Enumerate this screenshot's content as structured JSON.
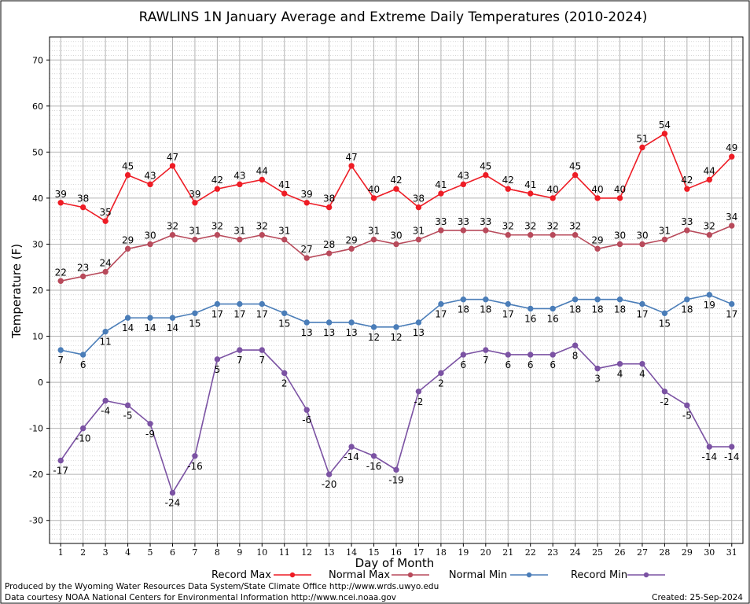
{
  "chart_data": {
    "type": "line",
    "title": "RAWLINS 1N January Average and Extreme Daily Temperatures (2010-2024)",
    "xlabel": "Day of Month",
    "ylabel": "Temperature (F)",
    "x": [
      1,
      2,
      3,
      4,
      5,
      6,
      7,
      8,
      9,
      10,
      11,
      12,
      13,
      14,
      15,
      16,
      17,
      18,
      19,
      20,
      21,
      22,
      23,
      24,
      25,
      26,
      27,
      28,
      29,
      30,
      31
    ],
    "xlim": [
      0.5,
      31.5
    ],
    "ylim": [
      -35,
      75
    ],
    "yticks": [
      -30,
      -20,
      -10,
      0,
      10,
      20,
      30,
      40,
      50,
      60,
      70
    ],
    "grid": true,
    "legend_position": "bottom",
    "series": [
      {
        "name": "Record Max",
        "color": "#ee1c25",
        "label_position": "above",
        "values": [
          39,
          38,
          35,
          45,
          43,
          47,
          39,
          42,
          43,
          44,
          41,
          39,
          38,
          47,
          40,
          42,
          38,
          41,
          43,
          45,
          42,
          41,
          40,
          45,
          40,
          40,
          51,
          54,
          42,
          44,
          49
        ]
      },
      {
        "name": "Normal Max",
        "color": "#b84a5b",
        "label_position": "above",
        "values": [
          22,
          23,
          24,
          29,
          30,
          32,
          31,
          32,
          31,
          32,
          31,
          27,
          28,
          29,
          31,
          30,
          31,
          33,
          33,
          33,
          32,
          32,
          32,
          32,
          29,
          30,
          30,
          31,
          33,
          32,
          34
        ]
      },
      {
        "name": "Normal Min",
        "color": "#4a7db8",
        "label_position": "below",
        "values": [
          7,
          6,
          11,
          14,
          14,
          14,
          15,
          17,
          17,
          17,
          15,
          13,
          13,
          13,
          12,
          12,
          13,
          17,
          18,
          18,
          17,
          16,
          16,
          18,
          18,
          18,
          17,
          15,
          18,
          19,
          17
        ]
      },
      {
        "name": "Record Min",
        "color": "#7b52a3",
        "label_position": "below",
        "values": [
          -17,
          -10,
          -4,
          -5,
          -9,
          -24,
          -16,
          5,
          7,
          7,
          2,
          -6,
          -20,
          -14,
          -16,
          -19,
          -2,
          2,
          6,
          7,
          6,
          6,
          6,
          8,
          3,
          4,
          4,
          -2,
          -5,
          -14,
          -14
        ]
      }
    ]
  },
  "footer": {
    "produced_by": "Produced by the Wyoming Water Resources Data System/State Climate Office http://www.wrds.uwyo.edu",
    "data_courtesy": "Data courtesy NOAA National Centers for Environmental Information http://www.ncei.noaa.gov",
    "created": "Created:  25-Sep-2024"
  }
}
